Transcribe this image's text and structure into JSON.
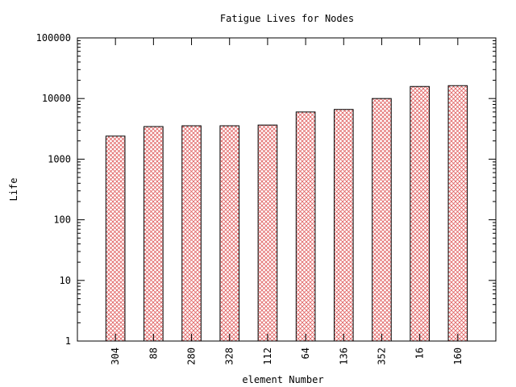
{
  "chart_data": {
    "type": "bar",
    "title": "Fatigue Lives for Nodes",
    "xlabel": "element Number",
    "ylabel": "Life",
    "categories": [
      "304",
      "88",
      "280",
      "328",
      "112",
      "64",
      "136",
      "352",
      "16",
      "160"
    ],
    "values": [
      2400,
      3450,
      3550,
      3550,
      3650,
      6000,
      6600,
      10000,
      15800,
      16300
    ],
    "yscale": "log",
    "ylim": [
      1,
      100000
    ],
    "yticks": [
      "1",
      "10",
      "100",
      "1000",
      "10000",
      "100000"
    ],
    "bar_fill": "crosshatch",
    "colors": {
      "bar_hatch": "#e06060",
      "bar_edge": "#000000",
      "axis": "#000000"
    },
    "grid": false,
    "legend": "none"
  }
}
